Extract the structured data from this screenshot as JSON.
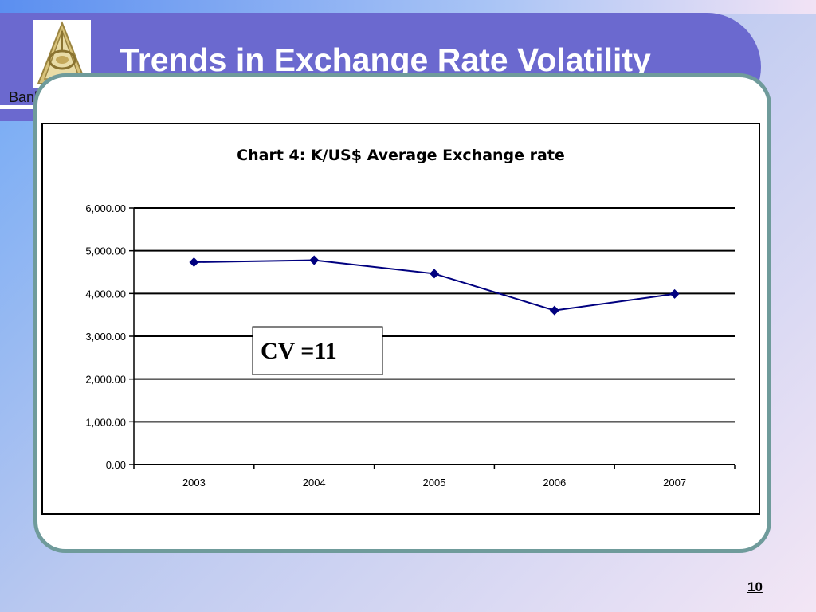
{
  "header": {
    "title": "Trends in Exchange Rate Volatility",
    "bank_name": "Bank of Zambia",
    "logo_icon": "bank-of-zambia-logo-icon"
  },
  "colors": {
    "header": "#6b69cf",
    "frame": "#6f9b9b",
    "series_line": "#00007f"
  },
  "chart_data": {
    "type": "line",
    "title": "Chart 4: K/US$ Average Exchange rate",
    "xlabel": "",
    "ylabel": "",
    "categories": [
      "2003",
      "2004",
      "2005",
      "2006",
      "2007"
    ],
    "y_tick_labels": [
      "0.00",
      "1,000.00",
      "2,000.00",
      "3,000.00",
      "4,000.00",
      "5,000.00",
      "6,000.00"
    ],
    "ylim": [
      0,
      6000
    ],
    "grid": true,
    "legend": "none",
    "series": [
      {
        "values": [
          4733,
          4779,
          4464,
          3603,
          3990
        ]
      }
    ],
    "annotation": "CV =11"
  },
  "footer": {
    "page_number": "10"
  }
}
